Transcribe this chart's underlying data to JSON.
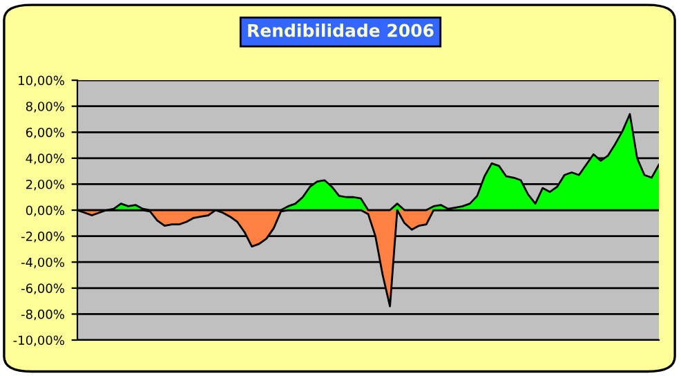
{
  "chart_data": {
    "type": "area",
    "title": "Rendibilidade 2006",
    "categories": [
      null,
      null,
      null,
      null,
      null,
      null,
      null,
      null,
      null,
      null,
      null,
      null,
      null,
      null,
      null,
      null,
      null,
      null,
      null,
      null,
      null,
      null,
      null,
      null,
      null,
      null,
      null,
      null,
      null,
      null,
      null,
      null,
      null,
      null,
      null,
      null,
      null,
      null,
      null,
      null,
      null,
      null,
      null,
      null,
      null,
      null,
      null,
      null,
      null,
      null,
      null,
      null,
      null,
      null,
      null,
      null,
      null,
      null,
      null,
      null,
      null,
      null,
      null,
      null,
      null,
      null,
      null,
      null,
      null,
      null,
      null,
      null,
      null,
      null,
      null,
      null,
      null,
      null,
      null,
      null,
      null
    ],
    "series": [
      {
        "color": "#00ff00",
        "values": [
          0,
          0,
          0,
          0,
          0,
          0.1,
          0.5,
          0.3,
          0.4,
          0.1,
          0,
          0,
          0,
          0,
          0,
          0,
          0,
          0,
          0,
          0,
          0,
          0,
          0,
          0,
          0,
          0,
          0,
          0,
          0,
          0.3,
          0.5,
          1.0,
          1.8,
          2.2,
          2.3,
          1.8,
          1.1,
          1.0,
          1.0,
          0.9,
          0,
          0,
          0,
          0,
          0.5,
          0,
          0,
          0,
          0,
          0.3,
          0.4,
          0.1,
          0.2,
          0.3,
          0.5,
          1.1,
          2.6,
          3.6,
          3.4,
          2.6,
          2.5,
          2.3,
          1.2,
          0.5,
          1.7,
          1.4,
          1.8,
          2.7,
          2.9,
          2.7,
          3.5,
          4.3,
          3.8,
          4.2,
          5.1,
          6.1,
          7.4,
          4.0,
          2.7,
          2.5,
          3.5
        ]
      },
      {
        "color": "#ff8040",
        "values": [
          0,
          -0.2,
          -0.4,
          -0.2,
          0,
          0,
          0,
          0,
          0,
          0,
          -0.1,
          -0.8,
          -1.2,
          -1.1,
          -1.1,
          -0.9,
          -0.6,
          -0.5,
          -0.4,
          0,
          -0.2,
          -0.5,
          -0.9,
          -1.7,
          -2.8,
          -2.6,
          -2.2,
          -1.4,
          -0.1,
          0,
          0,
          0,
          0,
          0,
          0,
          0,
          0,
          0,
          0,
          0,
          -0.3,
          -2.0,
          -5.0,
          -7.4,
          0,
          -1.0,
          -1.5,
          -1.2,
          -1.1,
          0,
          0,
          0,
          0,
          0,
          0,
          0,
          0,
          0,
          0,
          0,
          0,
          0,
          0,
          0,
          0,
          0,
          0,
          0,
          0,
          0,
          0,
          0,
          0,
          0,
          0,
          0,
          0,
          0,
          0,
          0,
          0
        ]
      }
    ],
    "ylim": [
      -10,
      10
    ],
    "yticks": [
      {
        "value": -10,
        "label": "-10,00%"
      },
      {
        "value": -8,
        "label": "-8,00%"
      },
      {
        "value": -6,
        "label": "-6,00%"
      },
      {
        "value": -4,
        "label": "-4,00%"
      },
      {
        "value": -2,
        "label": "-2,00%"
      },
      {
        "value": 0,
        "label": "0,00%"
      },
      {
        "value": 2,
        "label": "2,00%"
      },
      {
        "value": 4,
        "label": "4,00%"
      },
      {
        "value": 6,
        "label": "6,00%"
      },
      {
        "value": 8,
        "label": "8,00%"
      },
      {
        "value": 10,
        "label": "10,00%"
      }
    ],
    "grid": "y",
    "tick_labels": "y",
    "legend": false
  }
}
